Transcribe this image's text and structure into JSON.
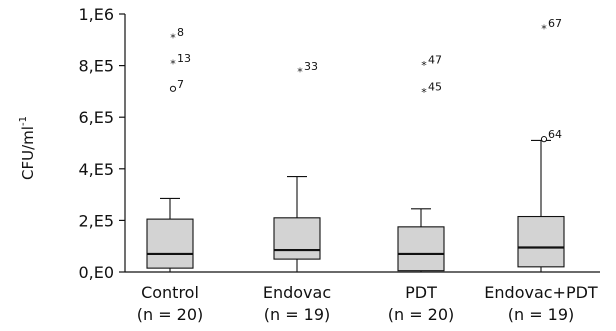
{
  "chart_data": {
    "type": "box",
    "ylabel": "CFU/ml",
    "ylabel_sup": "-1",
    "yticks": [
      "0,E0",
      "2,E5",
      "4,E5",
      "6,E5",
      "8,E5",
      "1,E6"
    ],
    "ytick_values": [
      0,
      200000,
      400000,
      600000,
      800000,
      1000000
    ],
    "ylim": [
      0,
      1000000
    ],
    "grid": false,
    "box_color": "#d3d3d3",
    "groups": [
      {
        "label": "Control",
        "n_label": "(n = 20)",
        "whisker_low": 0,
        "q1": 15000,
        "median": 70000,
        "q3": 205000,
        "whisker_high": 285000,
        "outliers": [
          {
            "label": "8",
            "value": 910000,
            "marker": "star"
          },
          {
            "label": "13",
            "value": 810000,
            "marker": "star"
          },
          {
            "label": "7",
            "value": 710000,
            "marker": "circle"
          }
        ]
      },
      {
        "label": "Endovac",
        "n_label": "(n = 19)",
        "whisker_low": 0,
        "q1": 50000,
        "median": 85000,
        "q3": 210000,
        "whisker_high": 370000,
        "outliers": [
          {
            "label": "33",
            "value": 780000,
            "marker": "star"
          }
        ]
      },
      {
        "label": "PDT",
        "n_label": "(n = 20)",
        "whisker_low": 0,
        "q1": 5000,
        "median": 70000,
        "q3": 175000,
        "whisker_high": 245000,
        "outliers": [
          {
            "label": "47",
            "value": 805000,
            "marker": "star"
          },
          {
            "label": "45",
            "value": 700000,
            "marker": "star"
          }
        ]
      },
      {
        "label": "Endovac+PDT",
        "n_label": "(n = 19)",
        "whisker_low": 0,
        "q1": 20000,
        "median": 95000,
        "q3": 215000,
        "whisker_high": 510000,
        "outliers": [
          {
            "label": "67",
            "value": 945000,
            "marker": "star"
          },
          {
            "label": "64",
            "value": 515000,
            "marker": "circle"
          }
        ]
      }
    ]
  }
}
